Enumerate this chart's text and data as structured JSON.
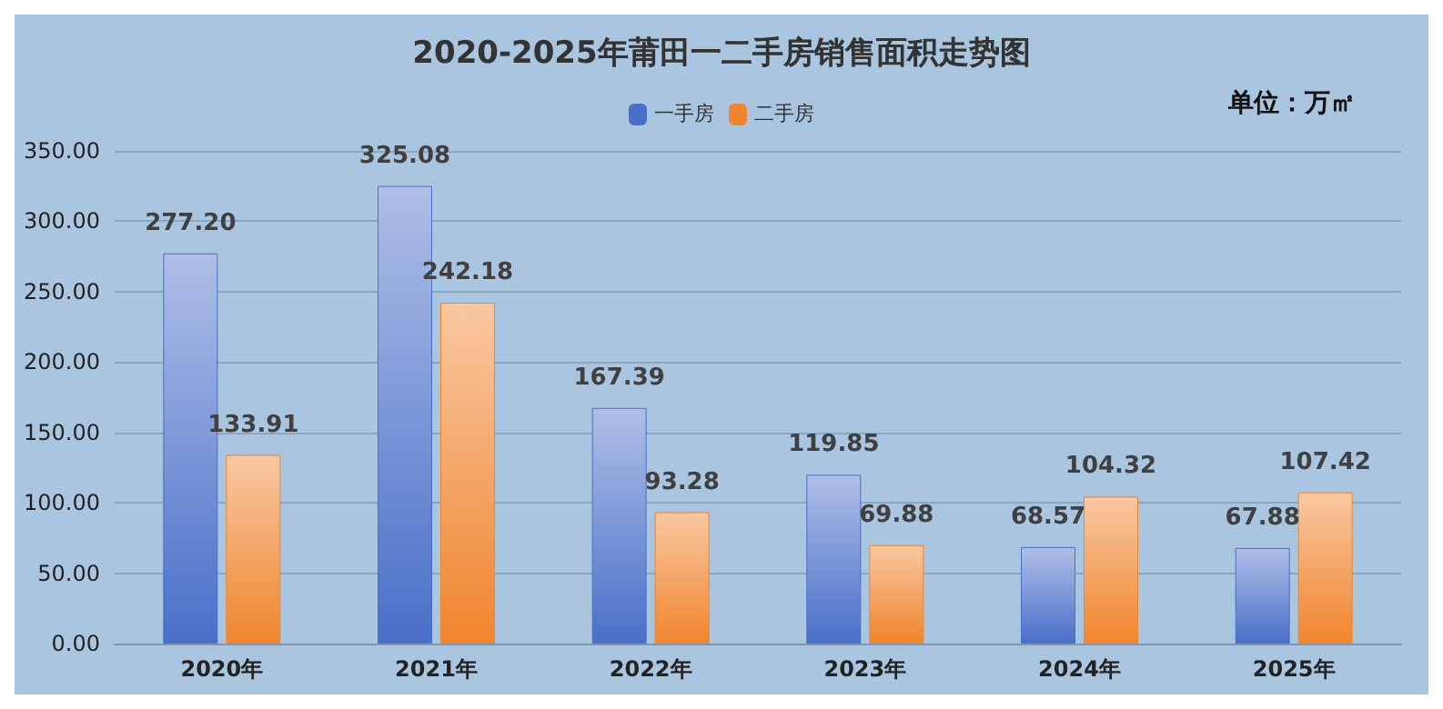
{
  "chart_data": {
    "type": "bar",
    "title": "2020-2025年莆田一二手房销售面积走势图",
    "annotations": [
      "单位：万㎡"
    ],
    "categories": [
      "2020年",
      "2021年",
      "2022年",
      "2023年",
      "2024年",
      "2025年"
    ],
    "series": [
      {
        "name": "一手房",
        "color": "#4a6fc9",
        "values": [
          277.2,
          325.08,
          167.39,
          119.85,
          68.57,
          67.88
        ],
        "value_labels": [
          "277.20",
          "325.08",
          "167.39",
          "119.85",
          "68.57",
          "67.88"
        ]
      },
      {
        "name": "二手房",
        "color": "#f0852e",
        "values": [
          133.91,
          242.18,
          93.28,
          69.88,
          104.32,
          107.42
        ],
        "value_labels": [
          "133.91",
          "242.18",
          "93.28",
          "69.88",
          "104.32",
          "107.42"
        ]
      }
    ],
    "ylim": [
      0,
      350
    ],
    "yticks": [
      {
        "value": 0,
        "label": "0.00"
      },
      {
        "value": 50,
        "label": "50.00"
      },
      {
        "value": 100,
        "label": "100.00"
      },
      {
        "value": 150,
        "label": "150.00"
      },
      {
        "value": 200,
        "label": "200.00"
      },
      {
        "value": 250,
        "label": "250.00"
      },
      {
        "value": 300,
        "label": "300.00"
      },
      {
        "value": 350,
        "label": "350.00"
      }
    ],
    "grid": "y",
    "legend": "top"
  }
}
